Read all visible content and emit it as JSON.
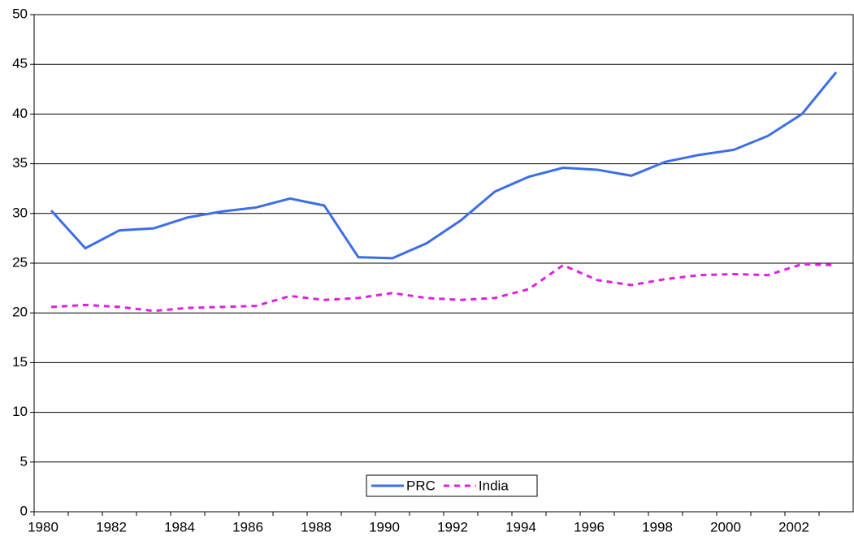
{
  "chart_data": {
    "type": "line",
    "categories": [
      "1980",
      null,
      "1982",
      null,
      "1984",
      null,
      "1986",
      null,
      "1988",
      null,
      "1990",
      null,
      "1992",
      null,
      "1994",
      null,
      "1996",
      null,
      "1998",
      null,
      "2000",
      null,
      "2002",
      null
    ],
    "series": [
      {
        "name": "PRC",
        "color": "#3d6ee8",
        "dash": false,
        "values": [
          30.3,
          26.5,
          28.3,
          28.5,
          29.6,
          30.2,
          30.6,
          31.5,
          30.8,
          25.6,
          25.5,
          27.0,
          29.3,
          32.2,
          33.7,
          34.6,
          34.4,
          33.8,
          35.2,
          35.9,
          36.4,
          37.8,
          40.0,
          44.2
        ]
      },
      {
        "name": "India",
        "color": "#e020e0",
        "dash": true,
        "values": [
          20.6,
          20.8,
          20.6,
          20.2,
          20.5,
          20.6,
          20.7,
          21.7,
          21.3,
          21.5,
          22.0,
          21.5,
          21.3,
          21.5,
          22.4,
          24.8,
          23.3,
          22.8,
          23.4,
          23.8,
          23.9,
          23.8,
          24.9,
          24.8
        ]
      }
    ],
    "ylim": [
      0,
      50
    ],
    "yticks": [
      0,
      5,
      10,
      15,
      20,
      25,
      30,
      35,
      40,
      45,
      50
    ],
    "grid": true,
    "legend": "bottom-center"
  }
}
